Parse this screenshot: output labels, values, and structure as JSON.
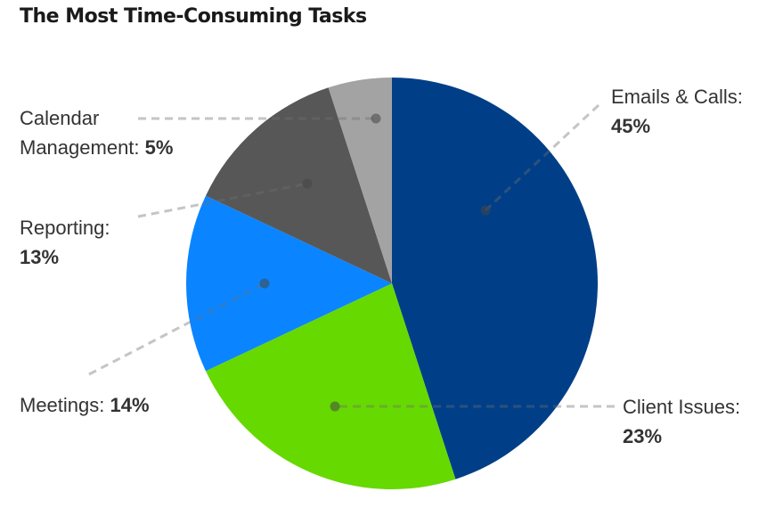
{
  "chart_data": {
    "type": "pie",
    "title": "The Most Time-Consuming Tasks",
    "start": "top",
    "direction": "clockwise",
    "slices": [
      {
        "label": "Emails & Calls:",
        "value": 45,
        "value_label": "45%",
        "color": "#003f87"
      },
      {
        "label": "Client Issues:",
        "value": 23,
        "value_label": "23%",
        "color": "#66d900"
      },
      {
        "label": "Meetings:",
        "value": 14,
        "value_label": "14%",
        "color": "#0a85ff"
      },
      {
        "label": "Reporting:",
        "value": 13,
        "value_label": "13%",
        "color": "#575757"
      },
      {
        "label": "Calendar Management:",
        "value": 5,
        "value_label": "5%",
        "color": "#a3a3a3"
      }
    ]
  }
}
